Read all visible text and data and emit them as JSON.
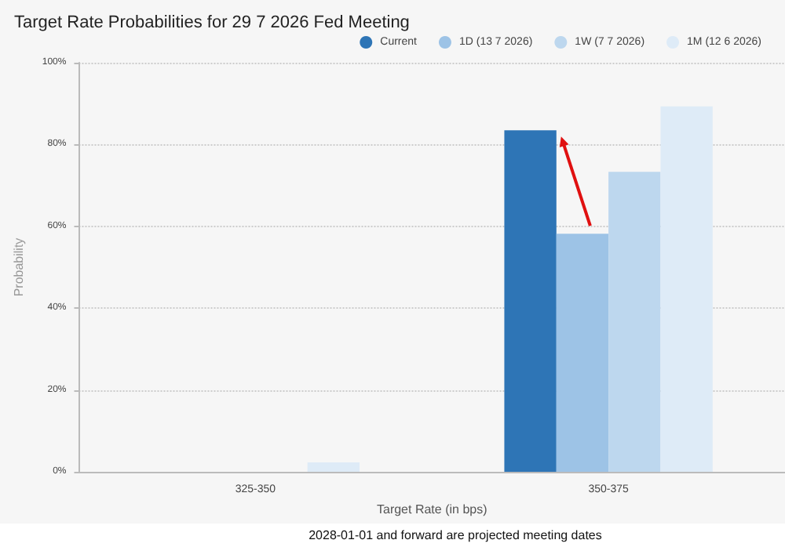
{
  "chart_data": {
    "type": "bar",
    "title": "Target Rate Probabilities for 29 7 2026 Fed Meeting",
    "xlabel": "Target Rate (in bps)",
    "ylabel": "Probability",
    "categories": [
      "325-350",
      "350-375"
    ],
    "series": [
      {
        "name": "Current",
        "color": "#2e75b6",
        "values": [
          0,
          83.5
        ]
      },
      {
        "name": "1D (13 7 2026)",
        "color": "#9dc3e6",
        "values": [
          0,
          58.2
        ]
      },
      {
        "name": "1W (7 7 2026)",
        "color": "#bdd7ee",
        "values": [
          0,
          73.3
        ]
      },
      {
        "name": "1M (12 6 2026)",
        "color": "#deebf7",
        "values": [
          2.3,
          89.3
        ]
      }
    ],
    "ylim": [
      0,
      100
    ],
    "yticks": [
      {
        "value": 0,
        "label": "0%"
      },
      {
        "value": 20,
        "label": "20%"
      },
      {
        "value": 40,
        "label": "40%"
      },
      {
        "value": 60,
        "label": "60%"
      },
      {
        "value": 80,
        "label": "80%"
      },
      {
        "value": 100,
        "label": "100%"
      }
    ],
    "grid": "y",
    "legend": "top right",
    "annotations": [
      "2028-01-01 and forward are projected meeting dates"
    ]
  }
}
